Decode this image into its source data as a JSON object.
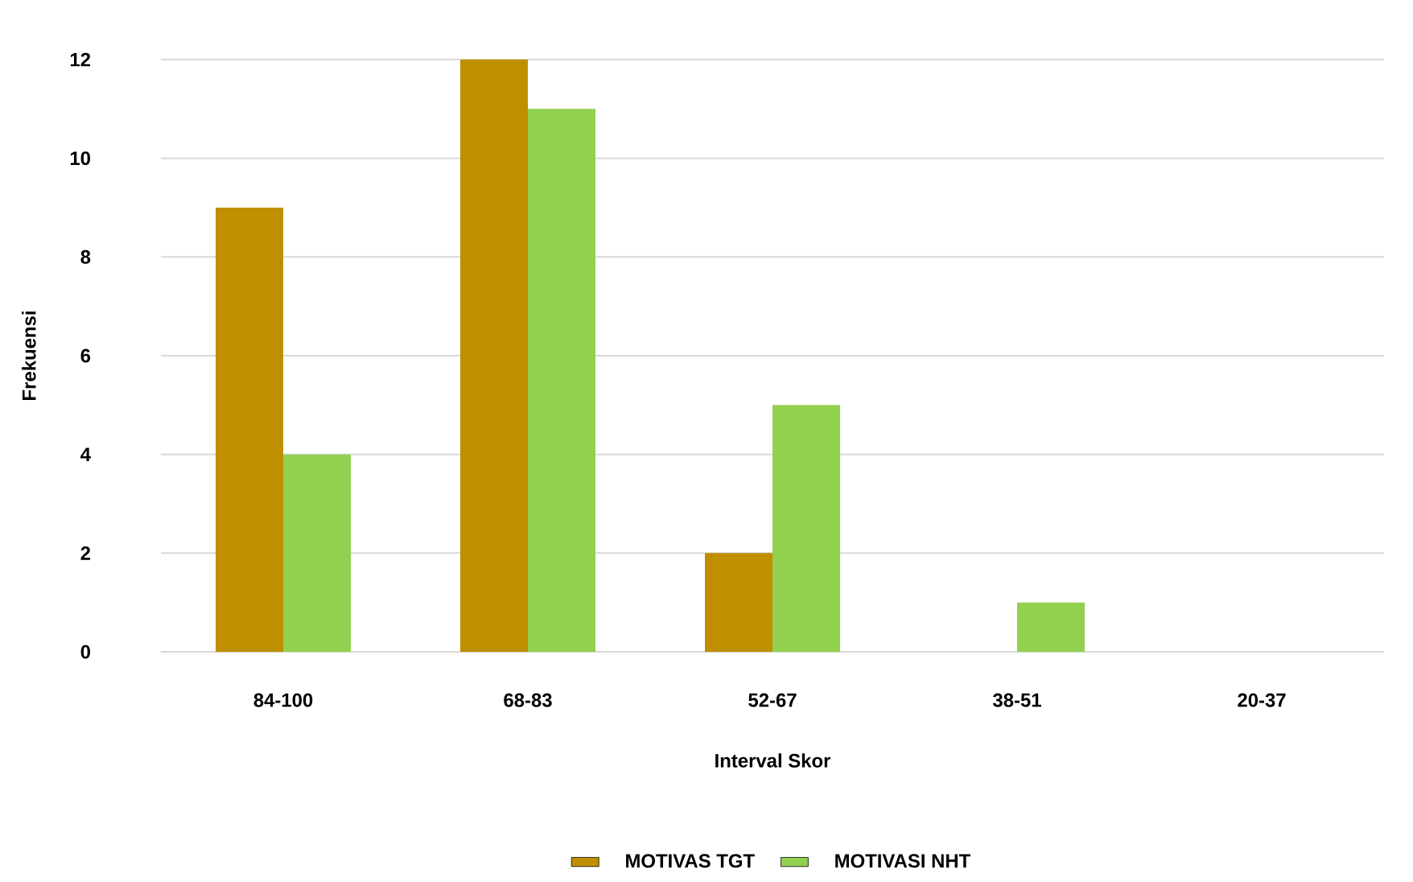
{
  "chart_data": {
    "type": "bar",
    "xlabel": "Interval Skor",
    "ylabel": "Frekuensi",
    "categories": [
      "84-100",
      "68-83",
      "52-67",
      "38-51",
      "20-37"
    ],
    "series": [
      {
        "name": "MOTIVAS TGT",
        "color": "#bf8f00",
        "values": [
          9,
          12,
          2,
          0,
          0
        ]
      },
      {
        "name": "MOTIVASI NHT",
        "color": "#92d050",
        "values": [
          4,
          11,
          5,
          1,
          0
        ]
      }
    ],
    "ylim": [
      0,
      12
    ],
    "yticks": [
      0,
      2,
      4,
      6,
      8,
      10,
      12
    ],
    "grid": "y",
    "legend": "bottom"
  }
}
